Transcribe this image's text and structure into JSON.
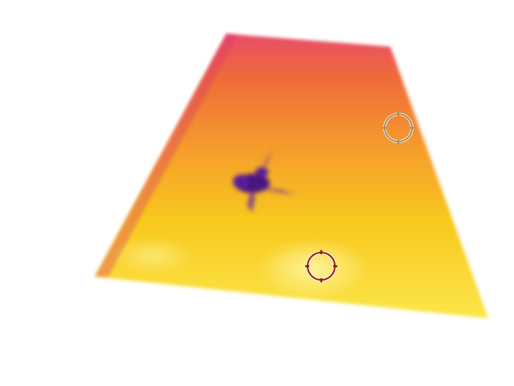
{
  "thermal_view": {
    "palette": [
      "#7a2a8a",
      "#d8336b",
      "#ef6a3a",
      "#f59c2c",
      "#f8c81e",
      "#fbe64a",
      "#fff6a8"
    ],
    "background": "#ffffff",
    "hotspot_color": "#4a1480"
  },
  "markers": [
    {
      "name": "measurement-circle",
      "color": "#a08a60"
    },
    {
      "name": "spot-crosshair",
      "color": "#8b1a1a"
    }
  ]
}
